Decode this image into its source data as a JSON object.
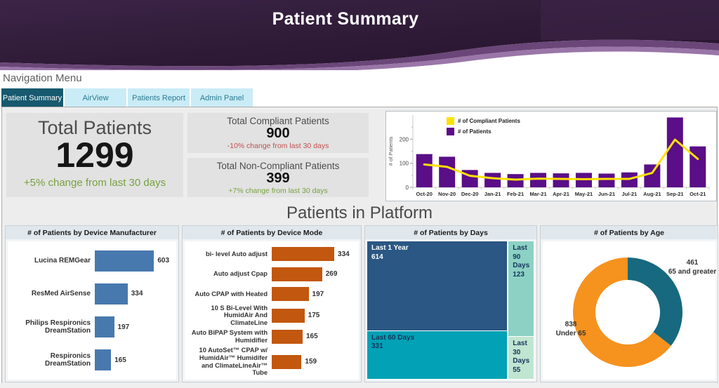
{
  "header": {
    "title": "Patient Summary"
  },
  "nav": {
    "label": "Navigation Menu",
    "tabs": [
      {
        "label": "Patient Summary",
        "active": true
      },
      {
        "label": "AirView",
        "active": false
      },
      {
        "label": "Patients Report",
        "active": false
      },
      {
        "label": "Admin Panel",
        "active": false
      }
    ]
  },
  "kpis": {
    "total": {
      "title": "Total Patients",
      "value": "1299",
      "change": "+5% change from last 30 days",
      "trend": "up"
    },
    "compliant": {
      "title": "Total Compliant Patients",
      "value": "900",
      "change": "-10% change from last 30 days",
      "trend": "down"
    },
    "non_compliant": {
      "title": "Total Non-Compliant Patients",
      "value": "399",
      "change": "+7% change from last 30 days",
      "trend": "up"
    }
  },
  "section_title": "Patients in Platform",
  "colors": {
    "bar_purple": "#5A0E87",
    "line_yellow": "#FFE105",
    "bar_blue": "#4779AE",
    "bar_orange": "#C2570F",
    "kpi_green": "#77A140",
    "kpi_red": "#C0504D",
    "tab_active": "#17596E",
    "tab_inactive": "#C9ECF6"
  },
  "chart_data": [
    {
      "id": "monthly",
      "type": "bar-line-combo",
      "categories": [
        "Oct-20",
        "Nov-20",
        "Dec-20",
        "Jan-21",
        "Feb-21",
        "Mar-21",
        "Apr-21",
        "May-21",
        "Jun-21",
        "Jul-21",
        "Aug-21",
        "Sep-21",
        "Oct-21"
      ],
      "series": [
        {
          "name": "# of Compliant Patients",
          "type": "line",
          "color": "#FFE105",
          "values": [
            95,
            85,
            48,
            38,
            32,
            36,
            35,
            34,
            35,
            35,
            60,
            198,
            118
          ]
        },
        {
          "name": "# of Patients",
          "type": "bar",
          "color": "#5A0E87",
          "values": [
            138,
            127,
            72,
            60,
            55,
            60,
            58,
            60,
            57,
            62,
            95,
            290,
            170
          ]
        }
      ],
      "ylabel": "# of Patients",
      "ylim": [
        0,
        300
      ],
      "yticks": [
        0,
        100,
        200
      ],
      "yticks_minor": [
        50,
        150,
        250
      ],
      "legend_position": "top-left",
      "grid": false
    },
    {
      "id": "device_manufacturer",
      "type": "bar",
      "orientation": "horizontal",
      "title": "# of Patients by Device Manufacturer",
      "categories": [
        "Lucina REMGear",
        "ResMed AirSense",
        "Philips Respironics DreamStation",
        "Respironics DreamStation"
      ],
      "values": [
        603,
        334,
        197,
        165
      ],
      "color": "#4779AE"
    },
    {
      "id": "device_mode",
      "type": "bar",
      "orientation": "horizontal",
      "title": "# of Patients by Device Mode",
      "categories": [
        "bi- level Auto adjust",
        "Auto adjust Cpap",
        "Auto CPAP with Heated",
        "10 S Bi-Level With HumidAir And ClimateLine",
        "Auto BiPAP System with Humidifier",
        "10 AutoSet™ CPAP w/ HumidAir™ Humidifer and ClimateLineAir™ Tube"
      ],
      "values": [
        334,
        269,
        197,
        175,
        165,
        159
      ],
      "color": "#C2570F"
    },
    {
      "id": "days",
      "type": "treemap",
      "title": "# of Patients by Days",
      "items": [
        {
          "label": "Last 1 Year",
          "value": 614,
          "color": "#2A5783",
          "text_color": "#FFFFFF"
        },
        {
          "label": "Last 60 Days",
          "value": 331,
          "color": "#02A1B5",
          "text_color": "#16365C"
        },
        {
          "label": "Last 90 Days",
          "value": 123,
          "color": "#8CD1C4",
          "text_color": "#16365C"
        },
        {
          "label": "Last 30 Days",
          "value": 55,
          "color": "#C0E5D1",
          "text_color": "#16365C"
        }
      ],
      "layout": {
        "left": [
          "Last 1 Year",
          "Last 60 Days"
        ],
        "right": [
          "Last 90 Days",
          "Last 30 Days"
        ]
      }
    },
    {
      "id": "age",
      "type": "donut",
      "title": "# of Patients by Age",
      "slices": [
        {
          "label": "65 and greater",
          "value": 461,
          "color": "#17697F"
        },
        {
          "label": "Under 65",
          "value": 838,
          "color": "#F6921E"
        }
      ]
    }
  ]
}
